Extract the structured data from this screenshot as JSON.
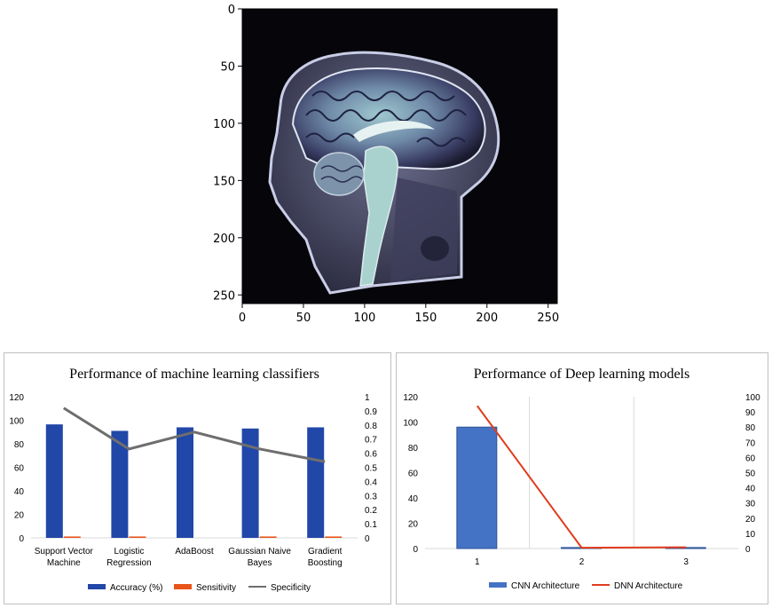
{
  "image_panel": {
    "x_ticks": [
      "0",
      "50",
      "100",
      "150",
      "200",
      "250"
    ],
    "y_ticks": [
      "0",
      "50",
      "100",
      "150",
      "200",
      "250"
    ]
  },
  "chart_data": [
    {
      "type": "bar",
      "title": "Performance of machine learning classifiers",
      "categories": [
        [
          "Support Vector",
          "Machine"
        ],
        [
          "Logistic",
          "Regression"
        ],
        [
          "AdaBoost"
        ],
        [
          "Gaussian Naive",
          "Bayes"
        ],
        [
          "Gradient",
          "Boosting"
        ]
      ],
      "y_ticks": [
        "0",
        "20",
        "40",
        "60",
        "80",
        "100",
        "120"
      ],
      "y2_ticks": [
        "0",
        "0.1",
        "0.2",
        "0.3",
        "0.4",
        "0.5",
        "0.6",
        "0.7",
        "0.8",
        "0.9",
        "1"
      ],
      "ylim": [
        0,
        120
      ],
      "y2lim": [
        0,
        1
      ],
      "legend_position": "bottom",
      "series": [
        {
          "name": "Accuracy (%)",
          "kind": "bar",
          "axis": "left",
          "color": "#2147a8",
          "values": [
            96.5,
            91,
            94,
            93,
            94
          ]
        },
        {
          "name": "Sensitivity",
          "kind": "bar",
          "axis": "right",
          "color": "#e8541a",
          "values": [
            0.01,
            0.01,
            0.0,
            0.01,
            0.01
          ]
        },
        {
          "name": "Specificity",
          "kind": "line",
          "axis": "right",
          "color": "#6e6e6e",
          "values": [
            0.92,
            0.63,
            0.75,
            0.63,
            0.54
          ]
        }
      ]
    },
    {
      "type": "bar",
      "title": "Performance of Deep learning models",
      "categories": [
        [
          "1"
        ],
        [
          "2"
        ],
        [
          "3"
        ]
      ],
      "y_ticks": [
        "0",
        "20",
        "40",
        "60",
        "80",
        "100",
        "120"
      ],
      "y2_ticks": [
        "0",
        "10",
        "20",
        "30",
        "40",
        "50",
        "60",
        "70",
        "80",
        "90",
        "100"
      ],
      "ylim": [
        0,
        120
      ],
      "y2lim": [
        0,
        100
      ],
      "grid": "vertical",
      "legend_position": "bottom",
      "series": [
        {
          "name": "CNN Architecture",
          "kind": "bar",
          "axis": "left",
          "color": "#4472c4",
          "values": [
            96,
            0.8,
            0.8
          ]
        },
        {
          "name": "DNN Architecture",
          "kind": "line",
          "axis": "right",
          "color": "#e03c1e",
          "values": [
            94,
            0.5,
            0.8
          ]
        }
      ]
    }
  ]
}
